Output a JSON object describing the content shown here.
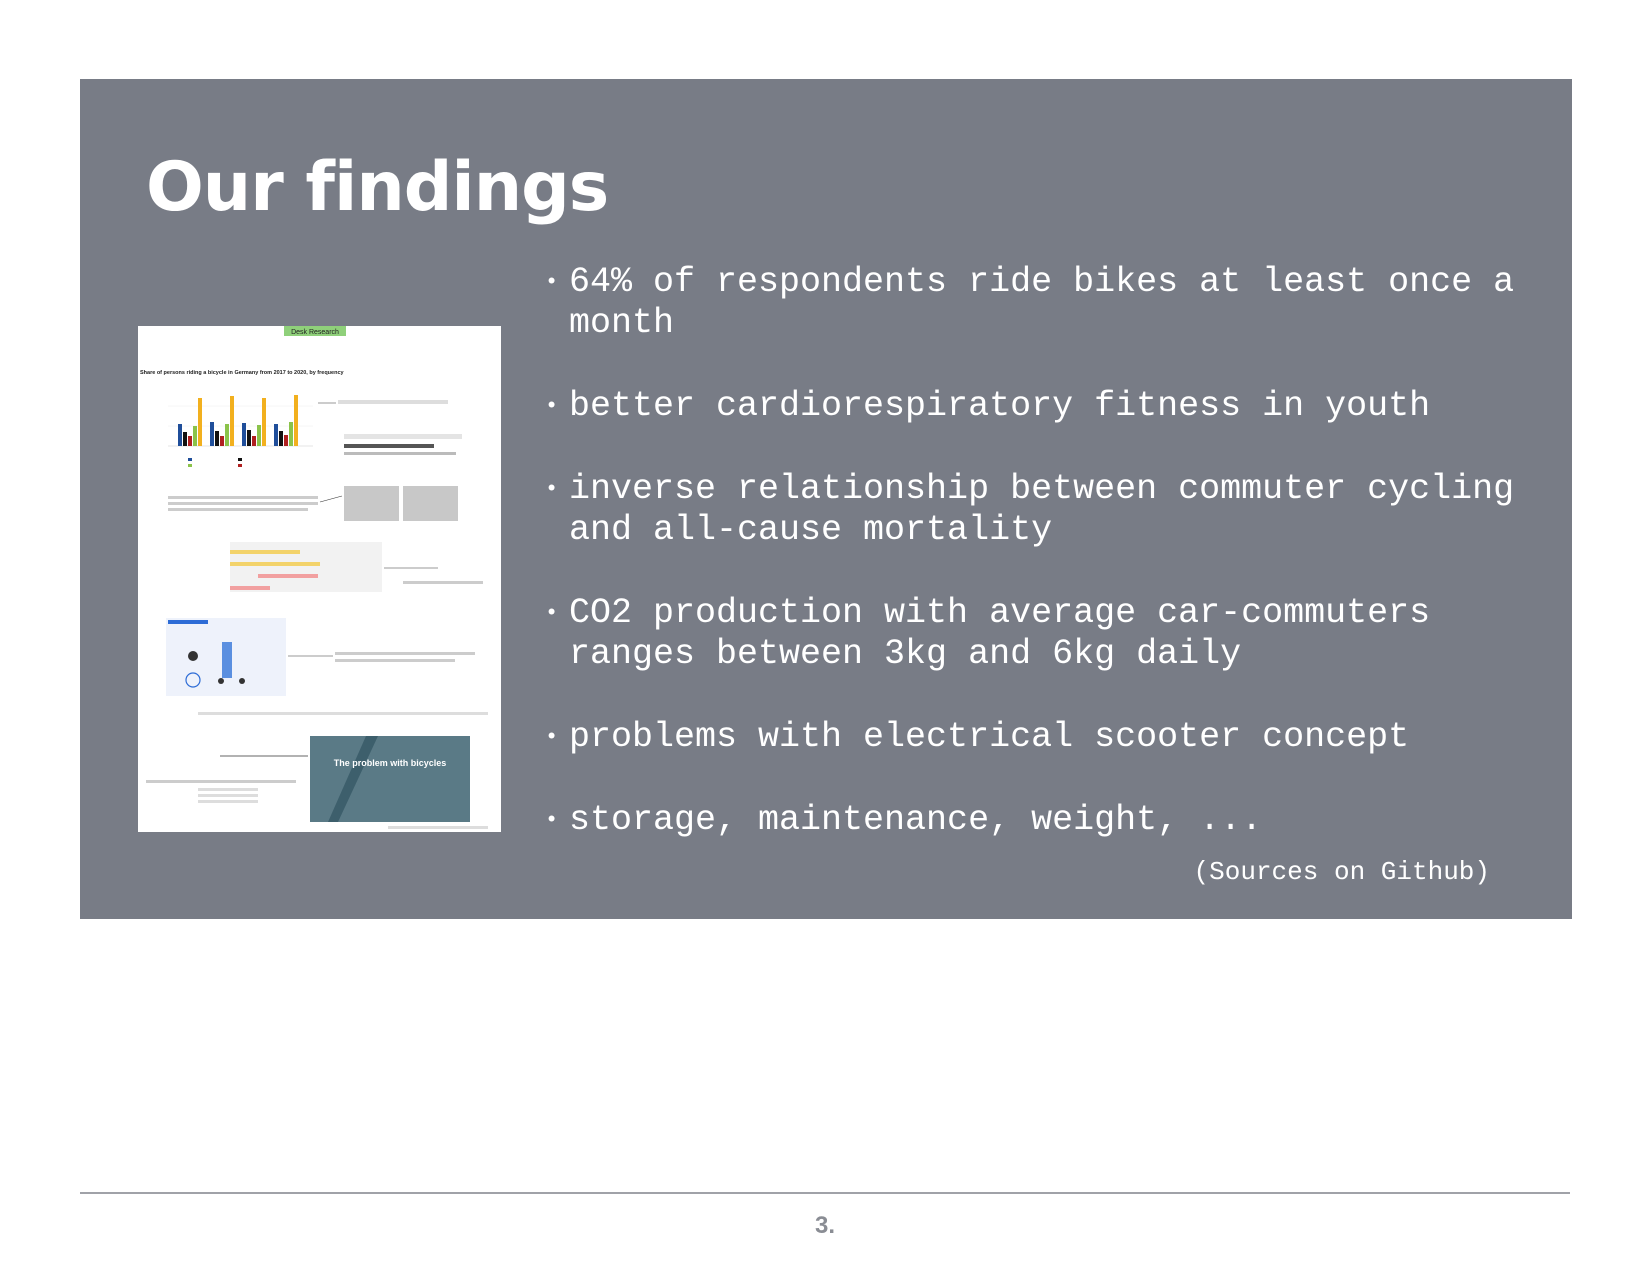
{
  "slide": {
    "title": "Our findings",
    "bullets": [
      "64% of respondents ride bikes at least once a month",
      "better cardiorespiratory fitness in youth",
      "inverse relationship between commuter cycling and all-cause mortality",
      "CO2 production with average car-commuters ranges between 3kg and 6kg daily",
      "problems with electrical scooter concept",
      "storage, maintenance, weight, ..."
    ],
    "sources_note": "(Sources on Github)"
  },
  "thumbnail": {
    "header_label": "Desk Research",
    "chart_title": "Share of persons riding a bicycle in Germany from 2017 to 2020, by frequency",
    "video_title": "The problem with bicycles"
  },
  "footer": {
    "page_number": "3."
  },
  "colors": {
    "slide_bg": "#787c86",
    "text": "#ffffff",
    "footer_rule": "#a0a2a8"
  }
}
